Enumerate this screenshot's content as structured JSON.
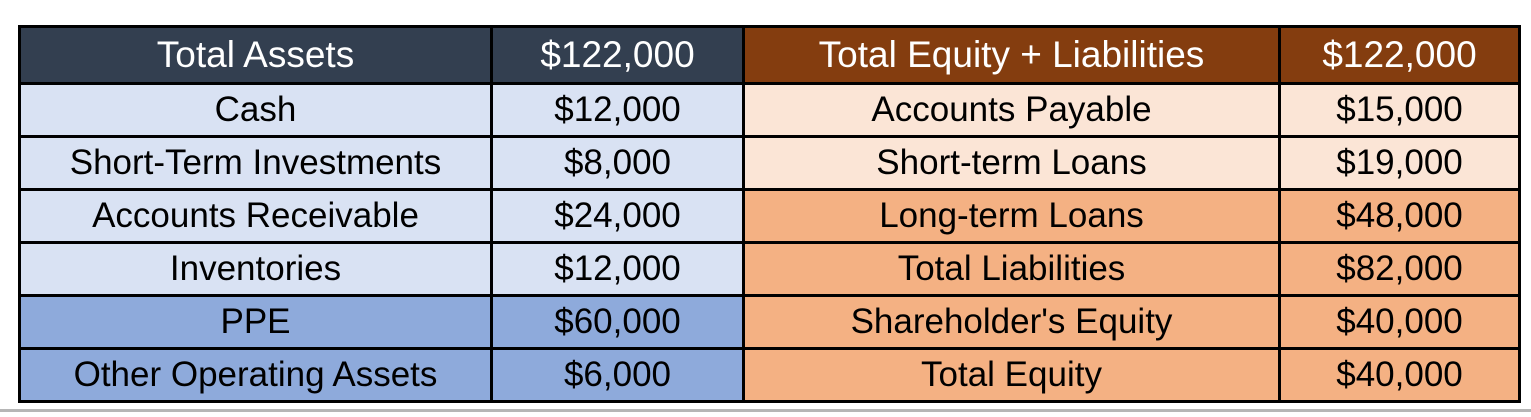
{
  "balance_sheet": {
    "assets": {
      "header": {
        "label": "Total Assets",
        "value": "$122,000"
      },
      "rows": [
        {
          "label": "Cash",
          "value": "$12,000"
        },
        {
          "label": "Short-Term Investments",
          "value": "$8,000"
        },
        {
          "label": "Accounts Receivable",
          "value": "$24,000"
        },
        {
          "label": "Inventories",
          "value": "$12,000"
        },
        {
          "label": "PPE",
          "value": "$60,000"
        },
        {
          "label": "Other Operating Assets",
          "value": "$6,000"
        }
      ]
    },
    "equity_liabilities": {
      "header": {
        "label": "Total Equity + Liabilities",
        "value": "$122,000"
      },
      "rows": [
        {
          "label": "Accounts Payable",
          "value": "$15,000"
        },
        {
          "label": "Short-term Loans",
          "value": "$19,000"
        },
        {
          "label": "Long-term Loans",
          "value": "$48,000"
        },
        {
          "label": "Total Liabilities",
          "value": "$82,000",
          "bold": true
        },
        {
          "label": "Shareholder's Equity",
          "value": "$40,000"
        },
        {
          "label": "Total Equity",
          "value": "$40,000",
          "bold": true
        }
      ]
    },
    "colors": {
      "assets_header_bg": "#333F50",
      "assets_row_light": "#D9E2F3",
      "assets_row_dark": "#8EAADB",
      "liab_header_bg": "#843D0F",
      "liab_row_light": "#FBE5D6",
      "liab_row_dark": "#F4B183",
      "header_text": "#FFFFFF",
      "body_text": "#000000",
      "border": "#000000"
    }
  }
}
